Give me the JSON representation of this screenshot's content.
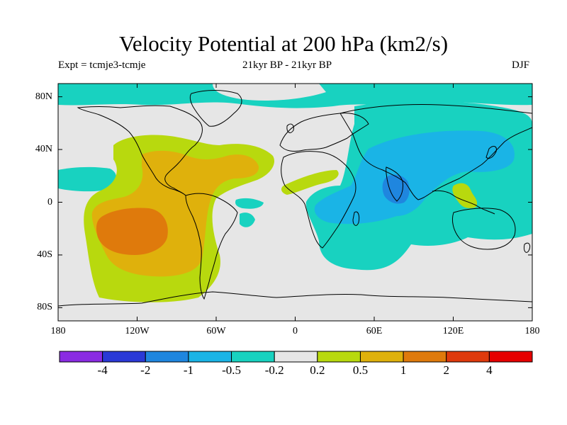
{
  "title": "Velocity Potential at 200 hPa (km2/s)",
  "experiment": "Expt = tcmje3-tcmje",
  "period": "21kyr BP - 21kyr BP",
  "season": "DJF",
  "map": {
    "lat_range": [
      -90,
      90
    ],
    "lon_range": [
      -180,
      180
    ],
    "lat_ticks": [
      "80N",
      "40N",
      "0",
      "40S",
      "80S"
    ],
    "lon_ticks": [
      "180",
      "120W",
      "60W",
      "0",
      "60E",
      "120E",
      "180"
    ]
  },
  "colorbar": {
    "levels": [
      "-4",
      "-2",
      "-1",
      "-0.5",
      "-0.2",
      "0.2",
      "0.5",
      "1",
      "2",
      "4"
    ],
    "colors": [
      "#8a2be2",
      "#2a39d6",
      "#1f86df",
      "#1ab4e6",
      "#18d2c0",
      "#e6e6e6",
      "#b8d90e",
      "#dfb10c",
      "#df7a0c",
      "#df3a0c",
      "#e60000"
    ]
  }
}
